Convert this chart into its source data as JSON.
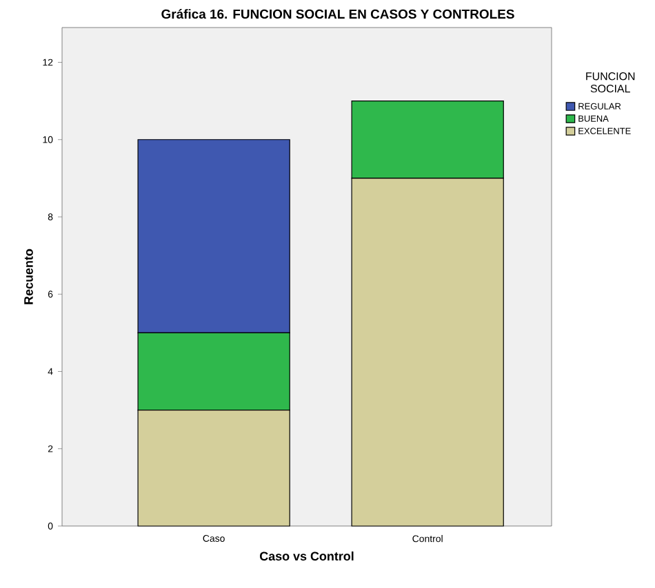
{
  "chart_data": {
    "type": "bar",
    "title": "Gráfica 16. FUNCION SOCIAL EN CASOS Y CONTROLES",
    "xlabel": "Caso vs Control",
    "ylabel": "Recuento",
    "legend_title": "FUNCION SOCIAL",
    "categories": [
      "Caso",
      "Control"
    ],
    "stacked": true,
    "series": [
      {
        "name": "EXCELENTE",
        "color": "#d4cf9b",
        "values": [
          3,
          9
        ]
      },
      {
        "name": "BUENA",
        "color": "#2fb84c",
        "values": [
          2,
          2
        ]
      },
      {
        "name": "REGULAR",
        "color": "#3f58b0",
        "values": [
          5,
          null
        ]
      }
    ],
    "ylim": [
      0,
      12.9
    ],
    "yticks": [
      0,
      2,
      4,
      6,
      8,
      10,
      12
    ],
    "grid": false,
    "legend": "right"
  }
}
